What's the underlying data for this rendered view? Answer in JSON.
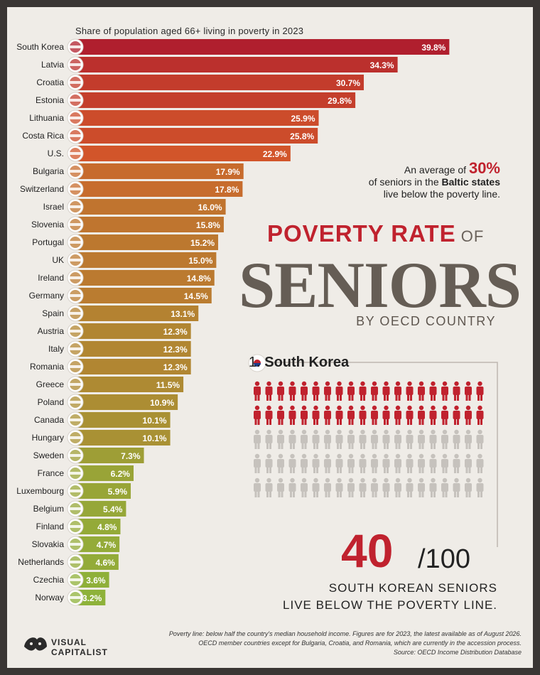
{
  "subtitle": "Share of population aged 66+ living in poverty in 2023",
  "callout": {
    "prefix": "An average of ",
    "pct": "30%",
    "line2a": "of seniors in the ",
    "bold": "Baltic states",
    "line3": "live below the poverty line."
  },
  "title": {
    "line1": "POVERTY RATE",
    "of": " OF",
    "line2": "SENIORS",
    "line3": "BY OECD COUNTRY"
  },
  "highlight": {
    "rank": "1.",
    "country": "South Korea",
    "value": "40",
    "denominator": "/100",
    "caption1": "SOUTH KOREAN SENIORS",
    "caption2": "LIVE BELOW THE POVERTY LINE.",
    "in_poverty": 40,
    "total": 100,
    "icon": "person-icon",
    "color_poverty": "#c0222e",
    "color_other": "#c6c2bd"
  },
  "footer": {
    "line1": "Poverty line: below half the country's median household income. Figures are for 2023, the latest available as of August 2026.",
    "line2": "OECD member countries except for Bulgaria, Croatia, and Romania, which are currently in the accession process.",
    "line3": "Source: OECD Income Distribution Database"
  },
  "logo": {
    "line1": "VISUAL",
    "line2": "CAPITALIST"
  },
  "chart_data": {
    "type": "bar",
    "orientation": "horizontal",
    "title": "Share of population aged 66+ living in poverty in 2023",
    "value_suffix": "%",
    "categories": [
      "South Korea",
      "Latvia",
      "Croatia",
      "Estonia",
      "Lithuania",
      "Costa Rica",
      "U.S.",
      "Bulgaria",
      "Switzerland",
      "Israel",
      "Slovenia",
      "Portugal",
      "UK",
      "Ireland",
      "Germany",
      "Spain",
      "Austria",
      "Italy",
      "Romania",
      "Greece",
      "Poland",
      "Canada",
      "Hungary",
      "Sweden",
      "France",
      "Luxembourg",
      "Belgium",
      "Finland",
      "Slovakia",
      "Netherlands",
      "Czechia",
      "Norway"
    ],
    "values": [
      39.8,
      34.3,
      30.7,
      29.8,
      25.9,
      25.8,
      22.9,
      17.9,
      17.8,
      16.0,
      15.8,
      15.2,
      15.0,
      14.8,
      14.5,
      13.1,
      12.3,
      12.3,
      12.3,
      11.5,
      10.9,
      10.1,
      10.1,
      7.3,
      6.2,
      5.9,
      5.4,
      4.8,
      4.7,
      4.6,
      3.6,
      3.2
    ],
    "labels": [
      "39.8%",
      "34.3%",
      "30.7%",
      "29.8%",
      "25.9%",
      "25.8%",
      "22.9%",
      "17.9%",
      "17.8%",
      "16.0%",
      "15.8%",
      "15.2%",
      "15.0%",
      "14.8%",
      "14.5%",
      "13.1%",
      "12.3%",
      "12.3%",
      "12.3%",
      "11.5%",
      "10.9%",
      "10.1%",
      "10.1%",
      "7.3%",
      "6.2%",
      "5.9%",
      "5.4%",
      "4.8%",
      "4.7%",
      "4.6%",
      "3.6%",
      "3.2%"
    ],
    "flags": [
      "south-korea-flag-icon",
      "latvia-flag-icon",
      "croatia-flag-icon",
      "estonia-flag-icon",
      "lithuania-flag-icon",
      "costa-rica-flag-icon",
      "us-flag-icon",
      "bulgaria-flag-icon",
      "switzerland-flag-icon",
      "israel-flag-icon",
      "slovenia-flag-icon",
      "portugal-flag-icon",
      "uk-flag-icon",
      "ireland-flag-icon",
      "germany-flag-icon",
      "spain-flag-icon",
      "austria-flag-icon",
      "italy-flag-icon",
      "romania-flag-icon",
      "greece-flag-icon",
      "poland-flag-icon",
      "canada-flag-icon",
      "hungary-flag-icon",
      "sweden-flag-icon",
      "france-flag-icon",
      "luxembourg-flag-icon",
      "belgium-flag-icon",
      "finland-flag-icon",
      "slovakia-flag-icon",
      "netherlands-flag-icon",
      "czechia-flag-icon",
      "norway-flag-icon"
    ],
    "bar_color_high": "#b01e2e",
    "bar_color_mid": "#d55a2a",
    "bar_color_low": "#8db33a",
    "xlim": [
      0,
      40
    ],
    "grid": false,
    "legend": "none"
  }
}
